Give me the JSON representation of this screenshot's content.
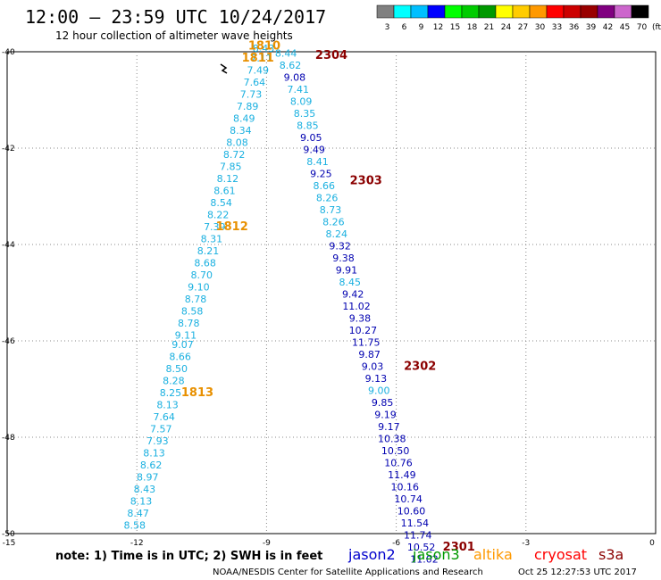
{
  "header": {
    "title": "12:00 – 23:59 UTC 10/24/2017",
    "subtitle": "12 hour collection of altimeter wave heights"
  },
  "legend": {
    "unit": "(ft)",
    "bins": [
      {
        "label": "3",
        "color": "#808080"
      },
      {
        "label": "6",
        "color": "#00ffff"
      },
      {
        "label": "9",
        "color": "#00bfff"
      },
      {
        "label": "12",
        "color": "#0000ff"
      },
      {
        "label": "15",
        "color": "#00ff00"
      },
      {
        "label": "18",
        "color": "#00cc00"
      },
      {
        "label": "21",
        "color": "#009900"
      },
      {
        "label": "24",
        "color": "#ffff00"
      },
      {
        "label": "27",
        "color": "#ffcc00"
      },
      {
        "label": "30",
        "color": "#ff9900"
      },
      {
        "label": "33",
        "color": "#ff0000"
      },
      {
        "label": "36",
        "color": "#cc0000"
      },
      {
        "label": "39",
        "color": "#990000"
      },
      {
        "label": "42",
        "color": "#800080"
      },
      {
        "label": "45",
        "color": "#cc66cc"
      },
      {
        "label": "70",
        "color": "#000000"
      }
    ]
  },
  "axes": {
    "lon_ticks": [
      "-15",
      "-12",
      "-9",
      "-6",
      "-3",
      "0"
    ],
    "lat_ticks": [
      "-40",
      "-42",
      "-44",
      "-46",
      "-48",
      "-50"
    ]
  },
  "colors": {
    "cyan_track": "#1ab0e0",
    "blue_track": "#0000b0",
    "orange_time": "#e89000",
    "darkred_time": "#8b0000",
    "grid": "#888888"
  },
  "tracks": [
    {
      "name": "cyan",
      "color": "#1ab0e0",
      "points": [
        {
          "lon": -9.07,
          "lat": -40.0,
          "v": "8.43"
        },
        {
          "lon": -9.12,
          "lat": -40.2,
          "v": "7.11"
        },
        {
          "lon": -9.2,
          "lat": -40.45,
          "v": "7.49"
        },
        {
          "lon": -9.28,
          "lat": -40.7,
          "v": "7.64"
        },
        {
          "lon": -9.36,
          "lat": -40.95,
          "v": "7.73"
        },
        {
          "lon": -9.44,
          "lat": -41.2,
          "v": "7.89"
        },
        {
          "lon": -9.52,
          "lat": -41.45,
          "v": "8.49"
        },
        {
          "lon": -9.6,
          "lat": -41.7,
          "v": "8.34"
        },
        {
          "lon": -9.68,
          "lat": -41.95,
          "v": "8.08"
        },
        {
          "lon": -9.75,
          "lat": -42.2,
          "v": "8.72"
        },
        {
          "lon": -9.83,
          "lat": -42.45,
          "v": "7.85"
        },
        {
          "lon": -9.9,
          "lat": -42.7,
          "v": "8.12"
        },
        {
          "lon": -9.97,
          "lat": -42.95,
          "v": "8.61"
        },
        {
          "lon": -10.05,
          "lat": -43.2,
          "v": "8.54"
        },
        {
          "lon": -10.12,
          "lat": -43.45,
          "v": "8.22"
        },
        {
          "lon": -10.2,
          "lat": -43.7,
          "v": "7.39"
        },
        {
          "lon": -10.27,
          "lat": -43.95,
          "v": "8.31"
        },
        {
          "lon": -10.35,
          "lat": -44.2,
          "v": "8.21"
        },
        {
          "lon": -10.42,
          "lat": -44.45,
          "v": "8.68"
        },
        {
          "lon": -10.5,
          "lat": -44.7,
          "v": "8.70"
        },
        {
          "lon": -10.57,
          "lat": -44.95,
          "v": "9.10"
        },
        {
          "lon": -10.64,
          "lat": -45.2,
          "v": "8.78"
        },
        {
          "lon": -10.72,
          "lat": -45.45,
          "v": "8.58"
        },
        {
          "lon": -10.8,
          "lat": -45.7,
          "v": "8.78"
        },
        {
          "lon": -10.87,
          "lat": -45.95,
          "v": "9.11"
        },
        {
          "lon": -10.94,
          "lat": -46.15,
          "v": "9.07"
        },
        {
          "lon": -11.0,
          "lat": -46.4,
          "v": "8.66"
        },
        {
          "lon": -11.08,
          "lat": -46.65,
          "v": "8.50"
        },
        {
          "lon": -11.15,
          "lat": -46.9,
          "v": "8.28"
        },
        {
          "lon": -11.22,
          "lat": -47.15,
          "v": "8.25"
        },
        {
          "lon": -11.29,
          "lat": -47.4,
          "v": "8.13"
        },
        {
          "lon": -11.37,
          "lat": -47.65,
          "v": "7.64"
        },
        {
          "lon": -11.44,
          "lat": -47.9,
          "v": "7.57"
        },
        {
          "lon": -11.52,
          "lat": -48.15,
          "v": "7.93"
        },
        {
          "lon": -11.6,
          "lat": -48.4,
          "v": "8.13"
        },
        {
          "lon": -11.67,
          "lat": -48.65,
          "v": "8.62"
        },
        {
          "lon": -11.75,
          "lat": -48.9,
          "v": "8.97"
        },
        {
          "lon": -11.82,
          "lat": -49.15,
          "v": "8.43"
        },
        {
          "lon": -11.9,
          "lat": -49.4,
          "v": "8.13"
        },
        {
          "lon": -11.97,
          "lat": -49.65,
          "v": "8.47"
        },
        {
          "lon": -12.05,
          "lat": -49.9,
          "v": "8.58"
        }
      ]
    },
    {
      "name": "mixed",
      "color": "#1ab0e0",
      "points": [
        {
          "lon": -8.55,
          "lat": -40.1,
          "v": "8.44",
          "c": "#1ab0e0"
        },
        {
          "lon": -8.45,
          "lat": -40.35,
          "v": "8.62",
          "c": "#1ab0e0"
        },
        {
          "lon": -8.35,
          "lat": -40.6,
          "v": "9.08",
          "c": "#0000b0"
        },
        {
          "lon": -8.27,
          "lat": -40.85,
          "v": "7.41",
          "c": "#1ab0e0"
        },
        {
          "lon": -8.2,
          "lat": -41.1,
          "v": "8.09",
          "c": "#1ab0e0"
        },
        {
          "lon": -8.12,
          "lat": -41.35,
          "v": "8.35",
          "c": "#1ab0e0"
        },
        {
          "lon": -8.05,
          "lat": -41.6,
          "v": "8.85",
          "c": "#1ab0e0"
        },
        {
          "lon": -7.97,
          "lat": -41.85,
          "v": "9.05",
          "c": "#0000b0"
        },
        {
          "lon": -7.9,
          "lat": -42.1,
          "v": "9.49",
          "c": "#0000b0"
        },
        {
          "lon": -7.82,
          "lat": -42.35,
          "v": "8.41",
          "c": "#1ab0e0"
        },
        {
          "lon": -7.74,
          "lat": -42.6,
          "v": "9.25",
          "c": "#0000b0"
        },
        {
          "lon": -7.67,
          "lat": -42.85,
          "v": "8.66",
          "c": "#1ab0e0"
        },
        {
          "lon": -7.6,
          "lat": -43.1,
          "v": "8.26",
          "c": "#1ab0e0"
        },
        {
          "lon": -7.52,
          "lat": -43.35,
          "v": "8.73",
          "c": "#1ab0e0"
        },
        {
          "lon": -7.45,
          "lat": -43.6,
          "v": "8.26",
          "c": "#1ab0e0"
        },
        {
          "lon": -7.38,
          "lat": -43.85,
          "v": "8.24",
          "c": "#1ab0e0"
        },
        {
          "lon": -7.3,
          "lat": -44.1,
          "v": "9.32",
          "c": "#0000b0"
        },
        {
          "lon": -7.22,
          "lat": -44.35,
          "v": "9.38",
          "c": "#0000b0"
        },
        {
          "lon": -7.15,
          "lat": -44.6,
          "v": "9.91",
          "c": "#0000b0"
        },
        {
          "lon": -7.07,
          "lat": -44.85,
          "v": "8.45",
          "c": "#1ab0e0"
        },
        {
          "lon": -7.0,
          "lat": -45.1,
          "v": "9.42",
          "c": "#0000b0"
        },
        {
          "lon": -6.92,
          "lat": -45.35,
          "v": "11.02",
          "c": "#0000b0"
        },
        {
          "lon": -6.84,
          "lat": -45.6,
          "v": "9.38",
          "c": "#0000b0"
        },
        {
          "lon": -6.77,
          "lat": -45.85,
          "v": "10.27",
          "c": "#0000b0"
        },
        {
          "lon": -6.7,
          "lat": -46.1,
          "v": "11.75",
          "c": "#0000b0"
        },
        {
          "lon": -6.62,
          "lat": -46.35,
          "v": "9.87",
          "c": "#0000b0"
        },
        {
          "lon": -6.55,
          "lat": -46.6,
          "v": "9.03",
          "c": "#0000b0"
        },
        {
          "lon": -6.47,
          "lat": -46.85,
          "v": "9.13",
          "c": "#0000b0"
        },
        {
          "lon": -6.4,
          "lat": -47.1,
          "v": "9.00",
          "c": "#1ab0e0"
        },
        {
          "lon": -6.32,
          "lat": -47.35,
          "v": "9.85",
          "c": "#0000b0"
        },
        {
          "lon": -6.25,
          "lat": -47.6,
          "v": "9.19",
          "c": "#0000b0"
        },
        {
          "lon": -6.17,
          "lat": -47.85,
          "v": "9.17",
          "c": "#0000b0"
        },
        {
          "lon": -6.1,
          "lat": -48.1,
          "v": "10.38",
          "c": "#0000b0"
        },
        {
          "lon": -6.02,
          "lat": -48.35,
          "v": "10.50",
          "c": "#0000b0"
        },
        {
          "lon": -5.95,
          "lat": -48.6,
          "v": "10.76",
          "c": "#0000b0"
        },
        {
          "lon": -5.87,
          "lat": -48.85,
          "v": "11.49",
          "c": "#0000b0"
        },
        {
          "lon": -5.8,
          "lat": -49.1,
          "v": "10.16",
          "c": "#0000b0"
        },
        {
          "lon": -5.72,
          "lat": -49.35,
          "v": "10.74",
          "c": "#0000b0"
        },
        {
          "lon": -5.65,
          "lat": -49.6,
          "v": "10.60",
          "c": "#0000b0"
        },
        {
          "lon": -5.57,
          "lat": -49.85,
          "v": "11.54",
          "c": "#0000b0"
        },
        {
          "lon": -5.5,
          "lat": -50.1,
          "v": "11.74",
          "c": "#0000b0"
        },
        {
          "lon": -5.42,
          "lat": -50.35,
          "v": "10.52",
          "c": "#0000b0"
        },
        {
          "lon": -5.35,
          "lat": -50.6,
          "v": "11.02",
          "c": "#0000b0"
        }
      ]
    }
  ],
  "time_labels": [
    {
      "text": "1810",
      "lon": -9.05,
      "lat": -39.95,
      "color": "#e89000"
    },
    {
      "text": "1811",
      "lon": -9.2,
      "lat": -40.2,
      "color": "#e89000"
    },
    {
      "text": "2304",
      "lon": -7.5,
      "lat": -40.15,
      "color": "#8b0000"
    },
    {
      "text": "2303",
      "lon": -6.7,
      "lat": -42.75,
      "color": "#8b0000"
    },
    {
      "text": "1812",
      "lon": -9.8,
      "lat": -43.7,
      "color": "#e89000"
    },
    {
      "text": "2302",
      "lon": -5.45,
      "lat": -46.6,
      "color": "#8b0000"
    },
    {
      "text": "1813",
      "lon": -10.6,
      "lat": -47.15,
      "color": "#e89000"
    },
    {
      "text": "2301",
      "lon": -4.55,
      "lat": -50.35,
      "color": "#8b0000"
    }
  ],
  "footer": {
    "note": "note:  1) Time is in UTC;  2) SWH is in feet",
    "satellites": [
      {
        "name": "jason2",
        "color": "#0000cc"
      },
      {
        "name": "jason3",
        "color": "#009900"
      },
      {
        "name": "altika",
        "color": "#ff9900"
      },
      {
        "name": "cryosat",
        "color": "#ff0000"
      },
      {
        "name": "s3a",
        "color": "#8b0000"
      }
    ],
    "credit": "NOAA/NESDIS Center for Satellite Applications and Research",
    "timestamp": "Oct 25 12:27:53 UTC 2017"
  }
}
